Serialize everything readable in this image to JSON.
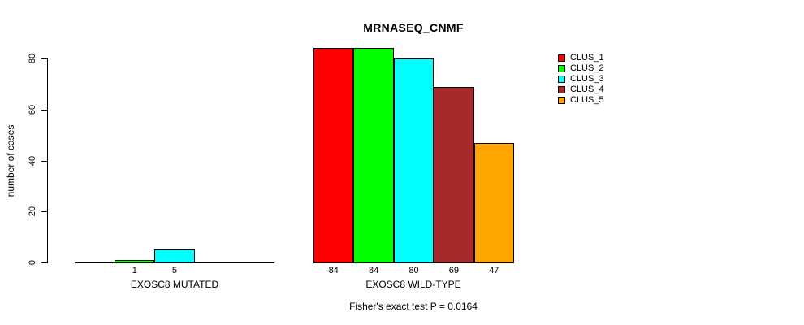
{
  "chart_data": {
    "type": "bar",
    "title": "MRNASEQ_CNMF",
    "ylabel": "number of cases",
    "footnote": "Fisher's exact test P = 0.0164",
    "ylim": [
      0,
      80
    ],
    "yticks": [
      0,
      20,
      40,
      60,
      80
    ],
    "grid": false,
    "legend_position": "right",
    "legend": [
      {
        "label": "CLUS_1",
        "color": "#FF0000"
      },
      {
        "label": "CLUS_2",
        "color": "#00FF00"
      },
      {
        "label": "CLUS_3",
        "color": "#00FFFF"
      },
      {
        "label": "CLUS_4",
        "color": "#A52A2A"
      },
      {
        "label": "CLUS_5",
        "color": "#FFA500"
      }
    ],
    "groups": [
      {
        "label": "EXOSC8 MUTATED",
        "values": [
          0,
          1,
          5,
          0,
          0
        ],
        "bar_labels": [
          "",
          "1",
          "5",
          "",
          ""
        ]
      },
      {
        "label": "EXOSC8 WILD-TYPE",
        "values": [
          84,
          84,
          80,
          69,
          47
        ],
        "bar_labels": [
          "84",
          "84",
          "80",
          "69",
          "47"
        ]
      }
    ]
  }
}
